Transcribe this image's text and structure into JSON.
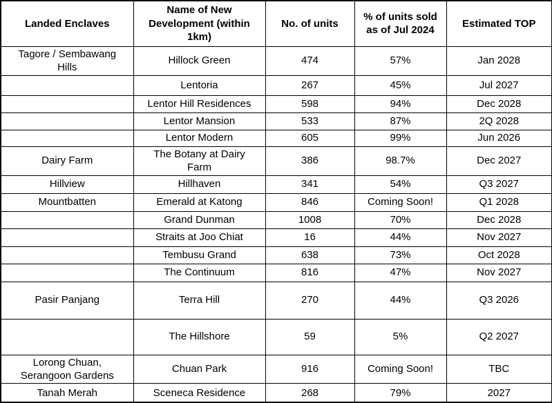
{
  "table": {
    "border_color": "#000000",
    "text_color": "#000000",
    "background_color": "#ffffff",
    "columns": [
      "Landed Enclaves",
      "Name of New Development (within 1km)",
      "No. of units",
      "% of units sold as of Jul 2024",
      "Estimated TOP"
    ],
    "rows": [
      {
        "enclave": "Tagore / Sembawang Hills",
        "development": "Hillock Green",
        "units": "474",
        "sold": "57%",
        "top": "Jan 2028"
      },
      {
        "enclave": "",
        "development": "Lentoria",
        "units": "267",
        "sold": "45%",
        "top": "Jul 2027"
      },
      {
        "enclave": "",
        "development": "Lentor Hill Residences",
        "units": "598",
        "sold": "94%",
        "top": "Dec 2028"
      },
      {
        "enclave": "",
        "development": "Lentor Mansion",
        "units": "533",
        "sold": "87%",
        "top": "2Q 2028"
      },
      {
        "enclave": "",
        "development": "Lentor Modern",
        "units": "605",
        "sold": "99%",
        "top": "Jun 2026"
      },
      {
        "enclave": "Dairy Farm",
        "development": "The Botany at Dairy Farm",
        "units": "386",
        "sold": "98.7%",
        "top": "Dec 2027"
      },
      {
        "enclave": "Hillview",
        "development": "Hillhaven",
        "units": "341",
        "sold": "54%",
        "top": "Q3 2027"
      },
      {
        "enclave": "Mountbatten",
        "development": "Emerald at Katong",
        "units": "846",
        "sold": "Coming Soon!",
        "top": "Q1 2028"
      },
      {
        "enclave": "",
        "development": "Grand Dunman",
        "units": "1008",
        "sold": "70%",
        "top": "Dec 2028"
      },
      {
        "enclave": "",
        "development": "Straits at Joo Chiat",
        "units": "16",
        "sold": "44%",
        "top": "Nov 2027"
      },
      {
        "enclave": "",
        "development": "Tembusu Grand",
        "units": "638",
        "sold": "73%",
        "top": "Oct 2028"
      },
      {
        "enclave": "",
        "development": "The Continuum",
        "units": "816",
        "sold": "47%",
        "top": "Nov 2027"
      },
      {
        "enclave": "Pasir Panjang",
        "development": "Terra Hill",
        "units": "270",
        "sold": "44%",
        "top": "Q3 2026"
      },
      {
        "enclave": "",
        "development": "The Hillshore",
        "units": "59",
        "sold": "5%",
        "top": "Q2 2027"
      },
      {
        "enclave": "Lorong Chuan, Serangoon Gardens",
        "development": "Chuan Park",
        "units": "916",
        "sold": "Coming Soon!",
        "top": "TBC"
      },
      {
        "enclave": "Tanah Merah",
        "development": "Sceneca Residence",
        "units": "268",
        "sold": "79%",
        "top": "2027"
      }
    ]
  }
}
